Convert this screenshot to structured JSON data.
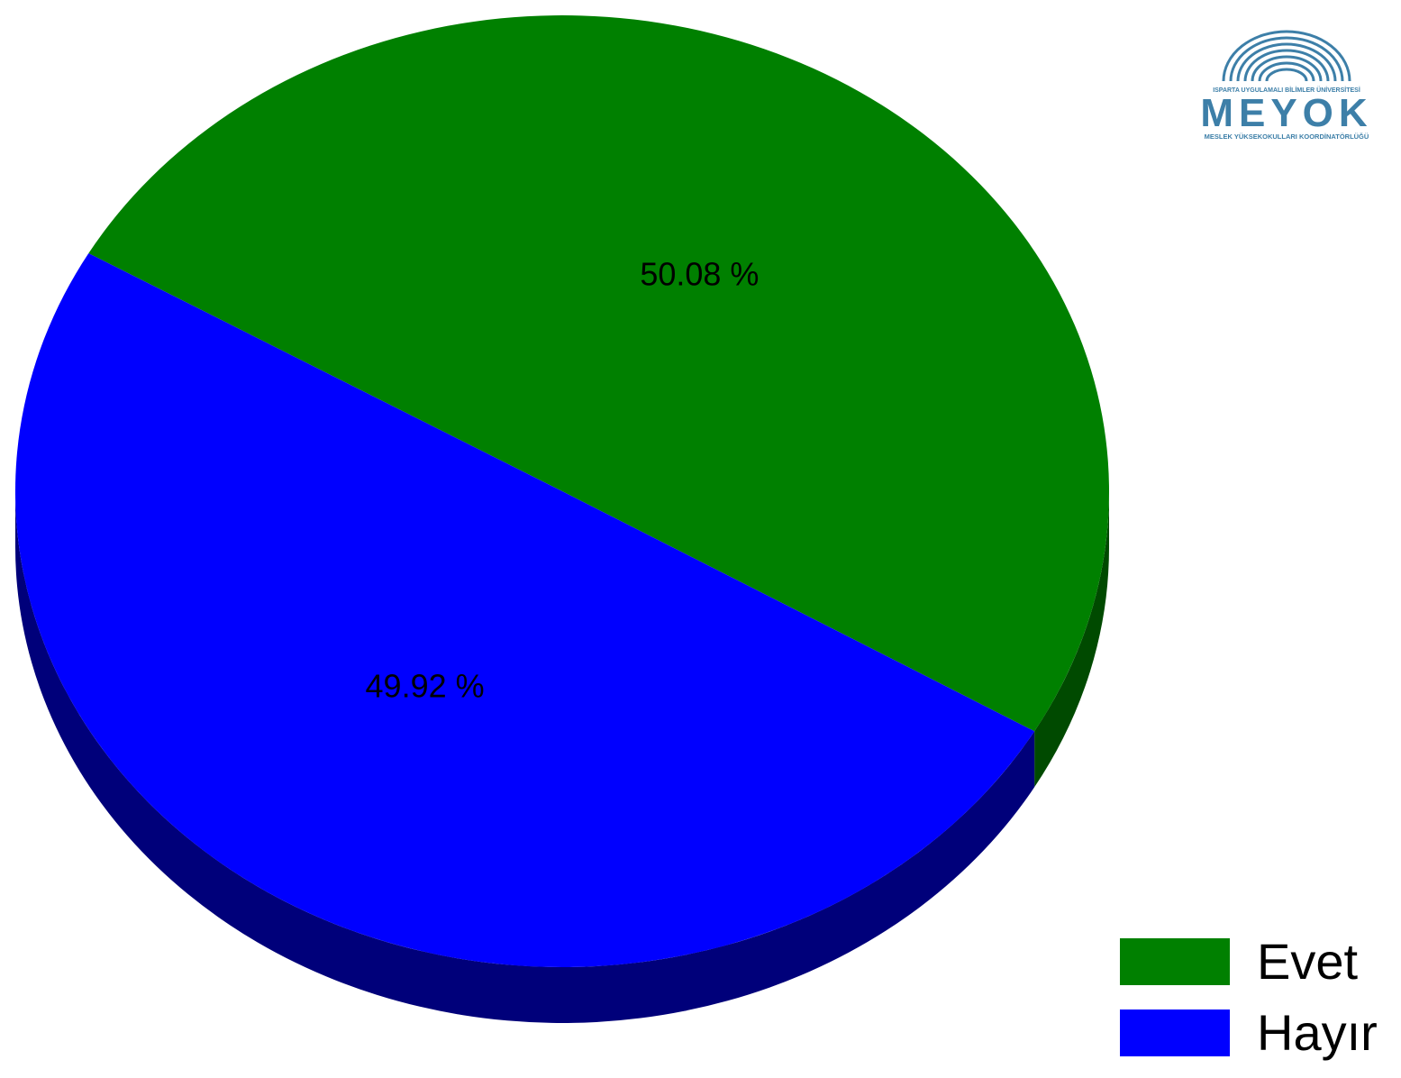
{
  "chart_data": {
    "type": "pie",
    "slices": [
      {
        "label": "Evet",
        "value": 50.08,
        "display": "50.08 %",
        "color": "#008000",
        "side_color": "#004a00"
      },
      {
        "label": "Hayır",
        "value": 49.92,
        "display": "49.92 %",
        "color": "#0000ff",
        "side_color": "#00007a"
      }
    ],
    "legend_position": "bottom-right",
    "style": "3d"
  },
  "legend": {
    "items": [
      {
        "label": "Evet",
        "color": "#008000"
      },
      {
        "label": "Hayır",
        "color": "#0000ff"
      }
    ]
  },
  "logo": {
    "top_line": "ISPARTA UYGULAMALI BİLİMLER ÜNİVERSİTESİ",
    "name": "MEYOK",
    "bottom_line": "MESLEK YÜKSEKOKULLARI KOORDİNATÖRLÜĞÜ",
    "color": "#3d7fa8"
  }
}
